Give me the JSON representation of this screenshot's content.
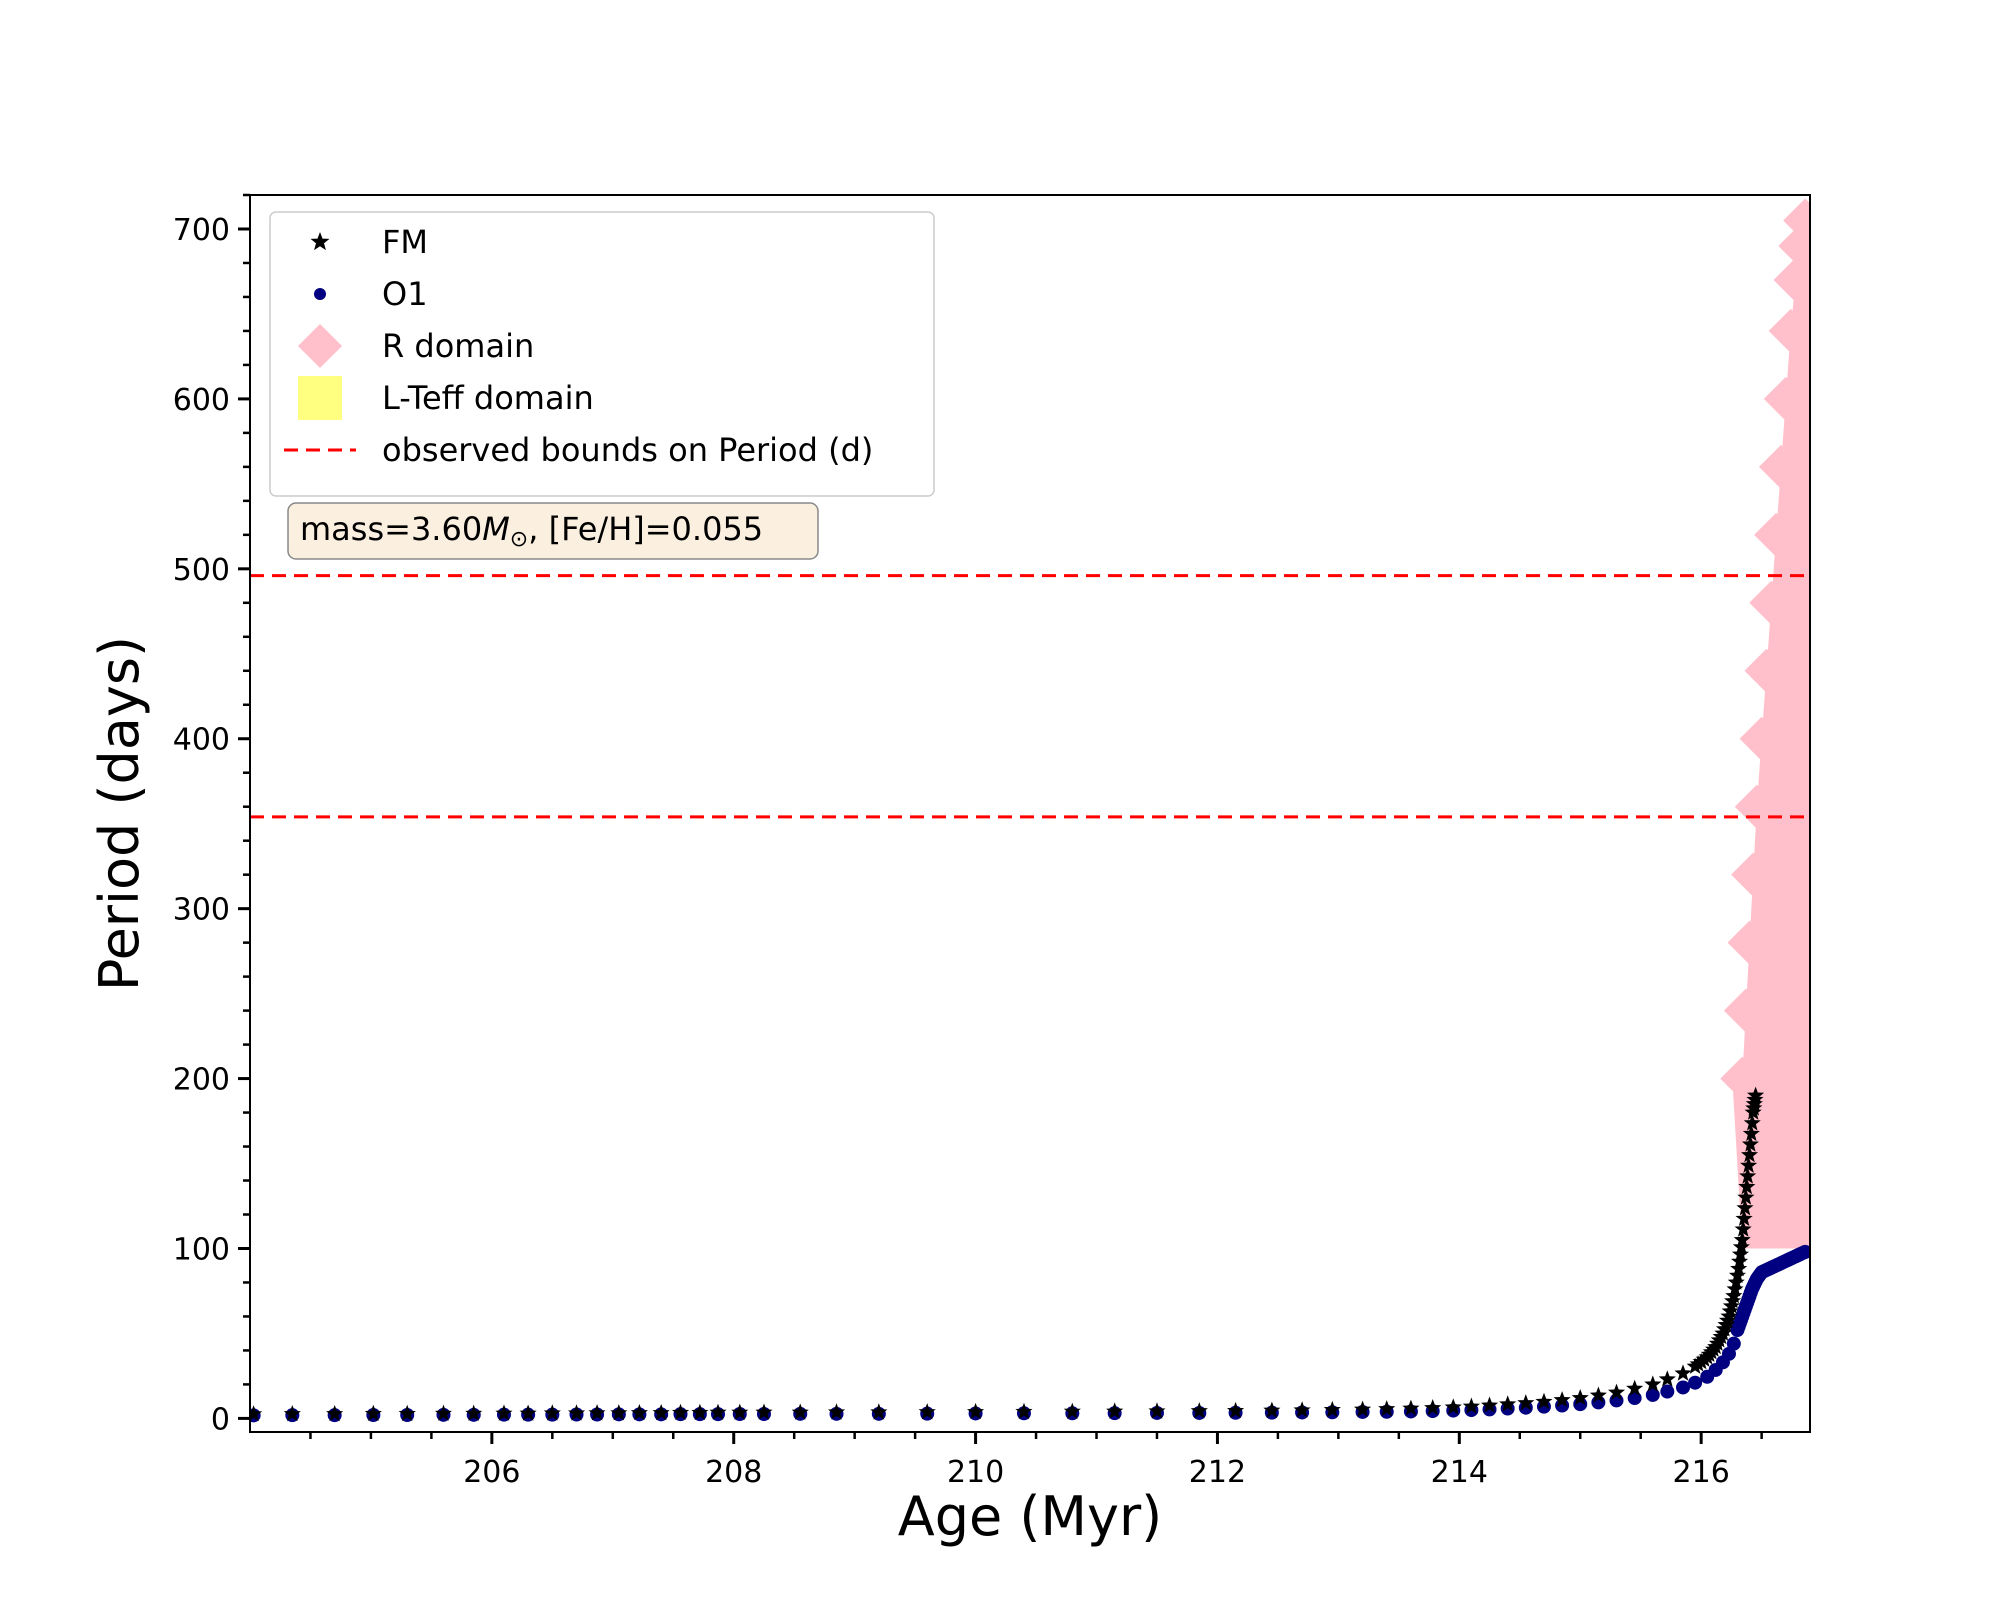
{
  "chart_data": {
    "type": "scatter",
    "xlabel": "Age (Myr)",
    "ylabel": "Period (days)",
    "xlim": [
      204.0,
      216.9
    ],
    "ylim": [
      -8,
      720
    ],
    "xticks": [
      206,
      208,
      210,
      212,
      214,
      216
    ],
    "yticks": [
      0,
      100,
      200,
      300,
      400,
      500,
      600,
      700
    ],
    "grid": false,
    "legend_position": "top-left",
    "annotation": {
      "prefix": "mass=3.60",
      "symbol": "M",
      "subscript": "⊙",
      "suffix": ", [Fe/H]=0.055"
    },
    "hlines": [
      {
        "name": "observed bounds on Period (d)",
        "y": 496,
        "color": "#ff0000",
        "style": "dashed"
      },
      {
        "name": "observed bounds on Period (d)",
        "y": 354,
        "color": "#ff0000",
        "style": "dashed"
      }
    ],
    "series": [
      {
        "name": "FM",
        "marker": "star",
        "color": "#000000",
        "points": [
          [
            204.03,
            2.5
          ],
          [
            204.35,
            2.6
          ],
          [
            204.7,
            2.6
          ],
          [
            205.02,
            2.7
          ],
          [
            205.3,
            2.7
          ],
          [
            205.6,
            2.8
          ],
          [
            205.85,
            2.8
          ],
          [
            206.1,
            2.9
          ],
          [
            206.3,
            2.9
          ],
          [
            206.5,
            3.0
          ],
          [
            206.7,
            3.0
          ],
          [
            206.87,
            3.1
          ],
          [
            207.05,
            3.1
          ],
          [
            207.22,
            3.2
          ],
          [
            207.4,
            3.2
          ],
          [
            207.56,
            3.3
          ],
          [
            207.72,
            3.3
          ],
          [
            207.87,
            3.4
          ],
          [
            208.05,
            3.4
          ],
          [
            208.25,
            3.5
          ],
          [
            208.55,
            3.5
          ],
          [
            208.85,
            3.6
          ],
          [
            209.2,
            3.6
          ],
          [
            209.6,
            3.7
          ],
          [
            210.0,
            3.8
          ],
          [
            210.4,
            3.9
          ],
          [
            210.8,
            4.0
          ],
          [
            211.15,
            4.1
          ],
          [
            211.5,
            4.2
          ],
          [
            211.85,
            4.3
          ],
          [
            212.15,
            4.4
          ],
          [
            212.45,
            4.6
          ],
          [
            212.7,
            4.8
          ],
          [
            212.95,
            5.0
          ],
          [
            213.2,
            5.2
          ],
          [
            213.4,
            5.5
          ],
          [
            213.6,
            5.8
          ],
          [
            213.78,
            6.1
          ],
          [
            213.95,
            6.5
          ],
          [
            214.1,
            7.0
          ],
          [
            214.25,
            7.6
          ],
          [
            214.4,
            8.3
          ],
          [
            214.55,
            9.0
          ],
          [
            214.7,
            9.8
          ],
          [
            214.85,
            10.8
          ],
          [
            215.0,
            12.0
          ],
          [
            215.15,
            13.5
          ],
          [
            215.3,
            15.2
          ],
          [
            215.45,
            17.5
          ],
          [
            215.6,
            20.0
          ],
          [
            215.72,
            23.0
          ],
          [
            215.85,
            26.5
          ],
          [
            215.95,
            30.5
          ],
          [
            216.05,
            36.0
          ],
          [
            216.12,
            42.0
          ],
          [
            216.18,
            50.0
          ],
          [
            216.23,
            60.0
          ],
          [
            216.27,
            72.0
          ],
          [
            216.31,
            88.0
          ],
          [
            216.34,
            105.0
          ],
          [
            216.37,
            130.0
          ],
          [
            216.4,
            155.0
          ],
          [
            216.43,
            180.0
          ],
          [
            216.45,
            190.0
          ]
        ]
      },
      {
        "name": "O1",
        "marker": "circle",
        "color": "#000080",
        "points": [
          [
            204.03,
            1.8
          ],
          [
            204.35,
            1.9
          ],
          [
            204.7,
            1.9
          ],
          [
            205.02,
            2.0
          ],
          [
            205.3,
            2.0
          ],
          [
            205.6,
            2.1
          ],
          [
            205.85,
            2.1
          ],
          [
            206.1,
            2.2
          ],
          [
            206.3,
            2.2
          ],
          [
            206.5,
            2.2
          ],
          [
            206.7,
            2.3
          ],
          [
            206.87,
            2.3
          ],
          [
            207.05,
            2.4
          ],
          [
            207.22,
            2.4
          ],
          [
            207.4,
            2.4
          ],
          [
            207.56,
            2.5
          ],
          [
            207.72,
            2.5
          ],
          [
            207.87,
            2.5
          ],
          [
            208.05,
            2.6
          ],
          [
            208.25,
            2.6
          ],
          [
            208.55,
            2.7
          ],
          [
            208.85,
            2.7
          ],
          [
            209.2,
            2.7
          ],
          [
            209.6,
            2.8
          ],
          [
            210.0,
            2.9
          ],
          [
            210.4,
            3.0
          ],
          [
            210.8,
            3.0
          ],
          [
            211.15,
            3.1
          ],
          [
            211.5,
            3.2
          ],
          [
            211.85,
            3.2
          ],
          [
            212.15,
            3.3
          ],
          [
            212.45,
            3.4
          ],
          [
            212.7,
            3.5
          ],
          [
            212.95,
            3.6
          ],
          [
            213.2,
            3.8
          ],
          [
            213.4,
            3.9
          ],
          [
            213.6,
            4.1
          ],
          [
            213.78,
            4.3
          ],
          [
            213.95,
            4.6
          ],
          [
            214.1,
            4.9
          ],
          [
            214.25,
            5.3
          ],
          [
            214.4,
            5.8
          ],
          [
            214.55,
            6.3
          ],
          [
            214.7,
            6.9
          ],
          [
            214.85,
            7.6
          ],
          [
            215.0,
            8.4
          ],
          [
            215.15,
            9.4
          ],
          [
            215.3,
            10.6
          ],
          [
            215.45,
            12.0
          ],
          [
            215.6,
            13.8
          ],
          [
            215.72,
            15.8
          ],
          [
            215.85,
            18.2
          ],
          [
            215.95,
            21.0
          ],
          [
            216.05,
            24.5
          ],
          [
            216.12,
            28.5
          ],
          [
            216.18,
            33.0
          ],
          [
            216.23,
            38.0
          ],
          [
            216.27,
            44.0
          ],
          [
            216.3,
            52.0
          ],
          [
            216.34,
            60.0
          ],
          [
            216.38,
            68.0
          ],
          [
            216.42,
            76.0
          ],
          [
            216.46,
            82.0
          ],
          [
            216.5,
            86.0
          ],
          [
            216.56,
            88.0
          ],
          [
            216.62,
            90.0
          ],
          [
            216.68,
            92.0
          ],
          [
            216.74,
            94.0
          ],
          [
            216.8,
            96.0
          ],
          [
            216.86,
            98.0
          ]
        ]
      },
      {
        "name": "R domain",
        "marker": "diamond",
        "color": "#ffc0cb",
        "points": [
          [
            216.34,
            200
          ],
          [
            216.37,
            240
          ],
          [
            216.4,
            280
          ],
          [
            216.43,
            320
          ],
          [
            216.46,
            360
          ],
          [
            216.5,
            400
          ],
          [
            216.54,
            440
          ],
          [
            216.58,
            480
          ],
          [
            216.62,
            520
          ],
          [
            216.66,
            560
          ],
          [
            216.7,
            600
          ],
          [
            216.74,
            640
          ],
          [
            216.78,
            670
          ],
          [
            216.82,
            690
          ],
          [
            216.86,
            705
          ]
        ]
      },
      {
        "name": "L-Teff domain",
        "marker": "square",
        "color": "#ffff80",
        "points": []
      }
    ]
  }
}
